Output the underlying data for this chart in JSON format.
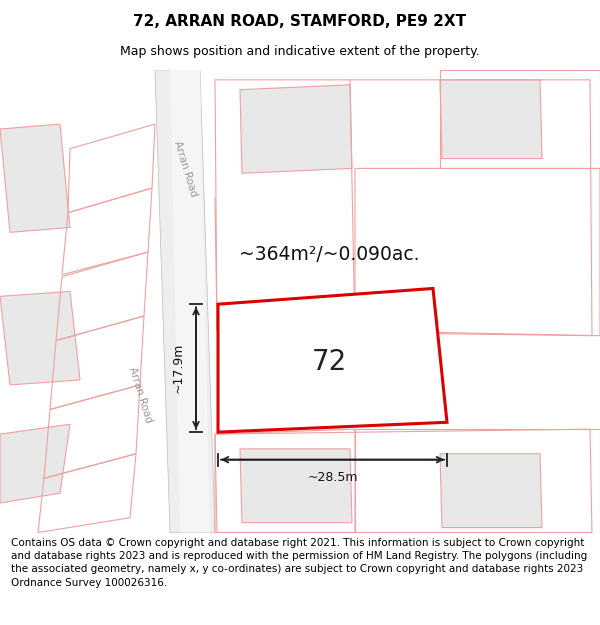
{
  "title": "72, ARRAN ROAD, STAMFORD, PE9 2XT",
  "subtitle": "Map shows position and indicative extent of the property.",
  "footer": "Contains OS data © Crown copyright and database right 2021. This information is subject to Crown copyright and database rights 2023 and is reproduced with the permission of HM Land Registry. The polygons (including the associated geometry, namely x, y co-ordinates) are subject to Crown copyright and database rights 2023 Ordnance Survey 100026316.",
  "area_label": "~364m²/~0.090ac.",
  "plot_number": "72",
  "dim_width": "~28.5m",
  "dim_height": "~17.9m",
  "bg_color": "#ffffff",
  "map_bg": "#ffffff",
  "plot_color": "#dd0000",
  "plot_fill": "#ffffff",
  "other_fill": "#e8e8e8",
  "other_edge": "#f0a0a0",
  "road_fill": "#e8e8e8",
  "road_edge": "#c0c0c0",
  "title_fontsize": 11,
  "subtitle_fontsize": 9,
  "footer_fontsize": 7.5
}
